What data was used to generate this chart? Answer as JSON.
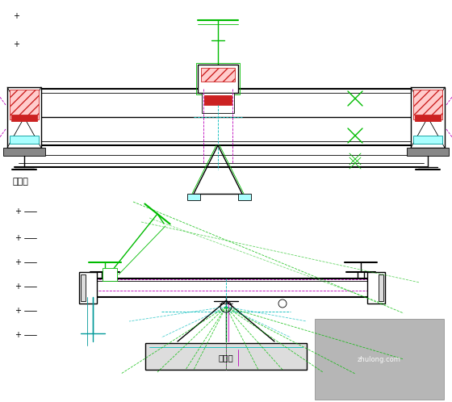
{
  "background_color": "#ffffff",
  "fig_width": 5.6,
  "fig_height": 4.98,
  "dpi": 100,
  "label_dingwei": "定位胎",
  "label_zuhan": "组煊胎",
  "colors": {
    "black": "#000000",
    "green": "#00bb00",
    "cyan": "#00bbbb",
    "magenta": "#bb00bb",
    "red": "#cc2222",
    "teal": "#009999",
    "gray": "#888888",
    "light_gray": "#dddddd",
    "dark_gray": "#555555",
    "pink_fill": "#ffcccc",
    "cyan_fill": "#aaffff",
    "wm_gray": "#aaaaaa"
  }
}
